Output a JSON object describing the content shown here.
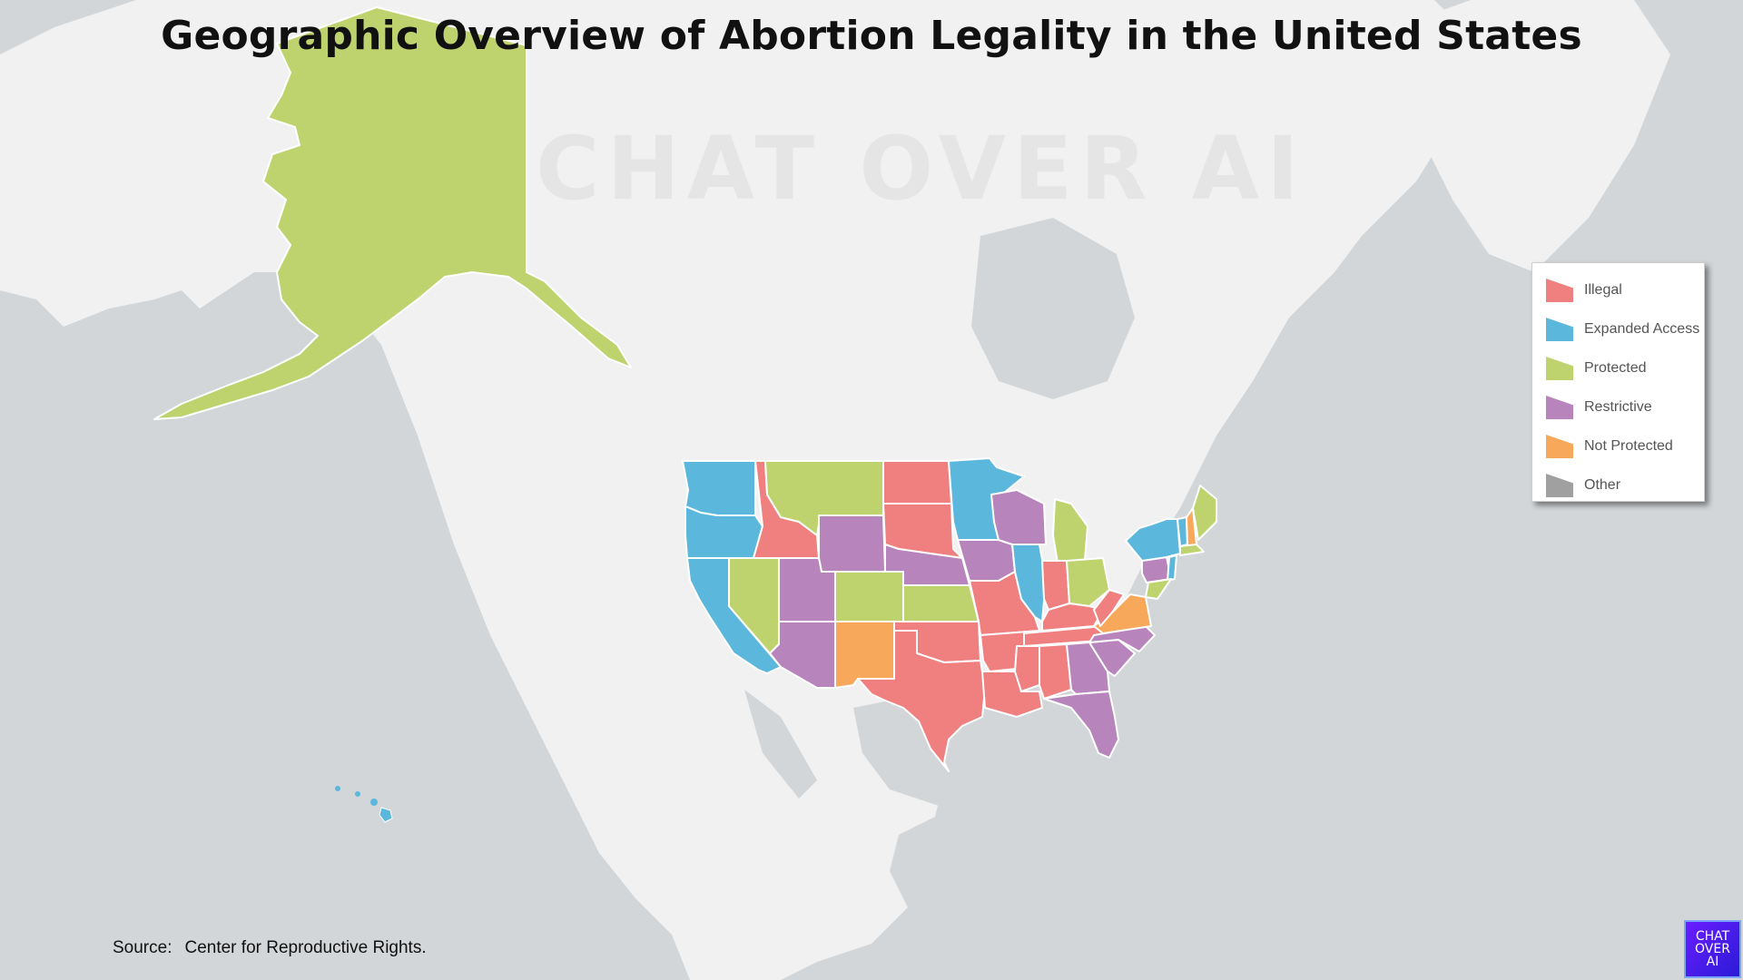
{
  "title": "Geographic Overview of Abortion Legality in the United States",
  "watermark": "CHAT OVER AI",
  "source_label": "Source:",
  "source_text": "Center for Reproductive Rights.",
  "logo_lines": [
    "CHAT",
    "OVER",
    "AI"
  ],
  "colors": {
    "ocean": "#d3d6d8",
    "land": "#f1f1f1",
    "illegal": "#f08080",
    "expanded": "#5bb8dc",
    "protected": "#bed36d",
    "restrictive": "#b784bb",
    "not_protected": "#f8a85a",
    "other": "#a0a0a0"
  },
  "legend": [
    {
      "label": "Illegal",
      "color": "#f08080"
    },
    {
      "label": "Expanded Access",
      "color": "#5bb8dc"
    },
    {
      "label": "Protected",
      "color": "#bed36d"
    },
    {
      "label": "Restrictive",
      "color": "#b784bb"
    },
    {
      "label": "Not Protected",
      "color": "#f8a85a"
    },
    {
      "label": "Other",
      "color": "#a0a0a0"
    }
  ],
  "states": [
    {
      "name": "Washington",
      "status": "Expanded Access"
    },
    {
      "name": "Oregon",
      "status": "Expanded Access"
    },
    {
      "name": "California",
      "status": "Expanded Access"
    },
    {
      "name": "Nevada",
      "status": "Protected"
    },
    {
      "name": "Idaho",
      "status": "Illegal"
    },
    {
      "name": "Montana",
      "status": "Protected"
    },
    {
      "name": "Wyoming",
      "status": "Restrictive"
    },
    {
      "name": "Utah",
      "status": "Restrictive"
    },
    {
      "name": "Arizona",
      "status": "Restrictive"
    },
    {
      "name": "Colorado",
      "status": "Protected"
    },
    {
      "name": "New Mexico",
      "status": "Not Protected"
    },
    {
      "name": "North Dakota",
      "status": "Illegal"
    },
    {
      "name": "South Dakota",
      "status": "Illegal"
    },
    {
      "name": "Nebraska",
      "status": "Restrictive"
    },
    {
      "name": "Kansas",
      "status": "Protected"
    },
    {
      "name": "Oklahoma",
      "status": "Illegal"
    },
    {
      "name": "Texas",
      "status": "Illegal"
    },
    {
      "name": "Minnesota",
      "status": "Expanded Access"
    },
    {
      "name": "Iowa",
      "status": "Restrictive"
    },
    {
      "name": "Missouri",
      "status": "Illegal"
    },
    {
      "name": "Arkansas",
      "status": "Illegal"
    },
    {
      "name": "Louisiana",
      "status": "Illegal"
    },
    {
      "name": "Wisconsin",
      "status": "Restrictive"
    },
    {
      "name": "Illinois",
      "status": "Expanded Access"
    },
    {
      "name": "Michigan",
      "status": "Protected"
    },
    {
      "name": "Indiana",
      "status": "Illegal"
    },
    {
      "name": "Ohio",
      "status": "Protected"
    },
    {
      "name": "Kentucky",
      "status": "Illegal"
    },
    {
      "name": "Tennessee",
      "status": "Illegal"
    },
    {
      "name": "Mississippi",
      "status": "Illegal"
    },
    {
      "name": "Alabama",
      "status": "Illegal"
    },
    {
      "name": "Georgia",
      "status": "Restrictive"
    },
    {
      "name": "Florida",
      "status": "Restrictive"
    },
    {
      "name": "South Carolina",
      "status": "Restrictive"
    },
    {
      "name": "North Carolina",
      "status": "Restrictive"
    },
    {
      "name": "Virginia",
      "status": "Not Protected"
    },
    {
      "name": "West Virginia",
      "status": "Illegal"
    },
    {
      "name": "Pennsylvania",
      "status": "Restrictive"
    },
    {
      "name": "New York",
      "status": "Expanded Access"
    },
    {
      "name": "New Jersey",
      "status": "Expanded Access"
    },
    {
      "name": "Vermont",
      "status": "Expanded Access"
    },
    {
      "name": "New Hampshire",
      "status": "Not Protected"
    },
    {
      "name": "Maine",
      "status": "Protected"
    },
    {
      "name": "Massachusetts",
      "status": "Protected"
    },
    {
      "name": "Maryland",
      "status": "Protected"
    },
    {
      "name": "Alaska",
      "status": "Protected"
    },
    {
      "name": "Hawaii",
      "status": "Expanded Access"
    }
  ]
}
